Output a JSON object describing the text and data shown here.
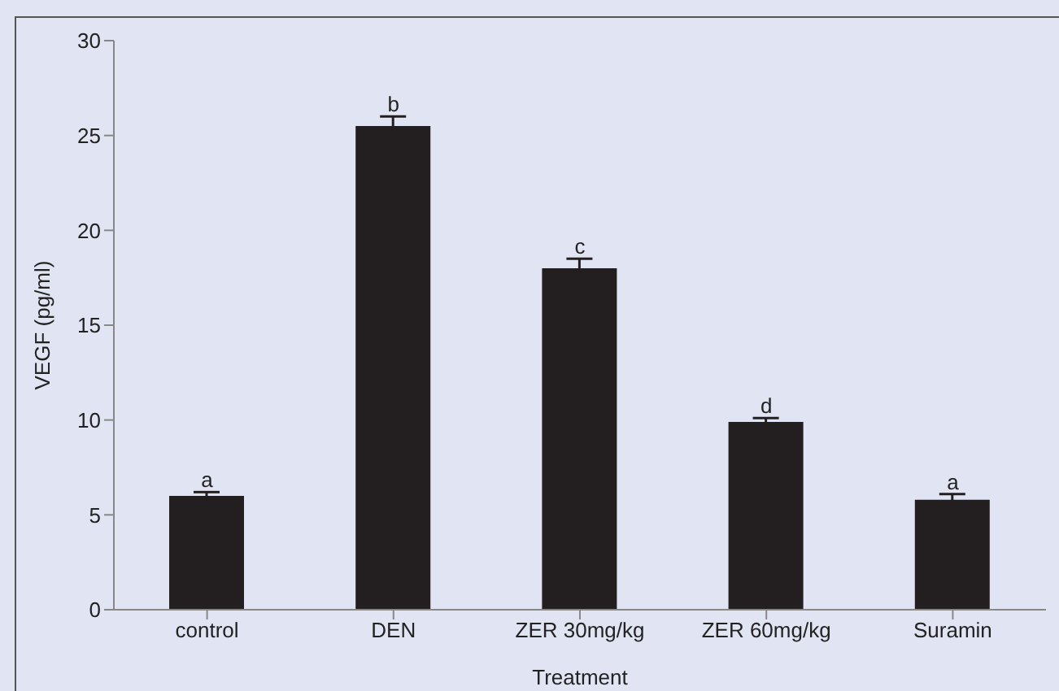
{
  "chart_data": {
    "type": "bar",
    "xlabel": "Treatment",
    "ylabel": "VEGF (pg/ml)",
    "categories": [
      "control",
      "DEN",
      "ZER 30mg/kg",
      "ZER 60mg/kg",
      "Suramin"
    ],
    "values": [
      6.0,
      25.5,
      18.0,
      9.9,
      5.8
    ],
    "errors": [
      0.2,
      0.5,
      0.5,
      0.2,
      0.3
    ],
    "color": "#231f20",
    "ylim": [
      0,
      30
    ],
    "yticks": [
      0,
      5,
      10,
      15,
      20,
      25,
      30
    ],
    "grid": false,
    "legend": false,
    "annotations": [
      {
        "text": "a",
        "x": "control",
        "y": 6.2
      },
      {
        "text": "b",
        "x": "DEN",
        "y": 26.0
      },
      {
        "text": "c",
        "x": "ZER 30mg/kg",
        "y": 18.5
      },
      {
        "text": "d",
        "x": "ZER 60mg/kg",
        "y": 10.1
      },
      {
        "text": "a",
        "x": "Suramin",
        "y": 6.1
      }
    ]
  }
}
